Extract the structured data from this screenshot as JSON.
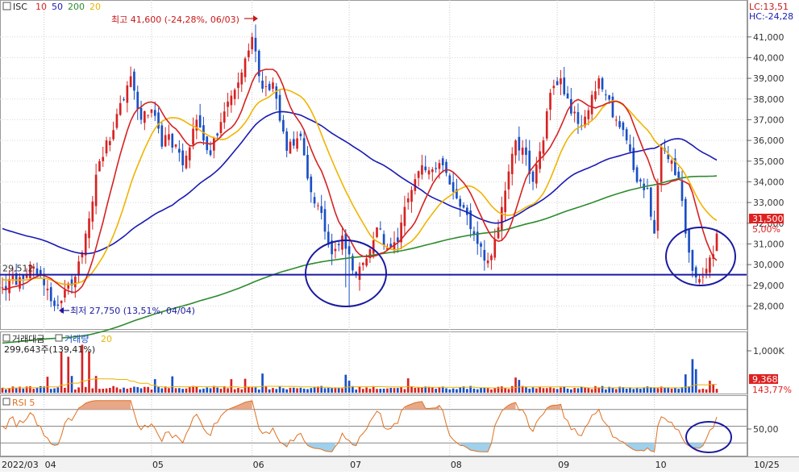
{
  "price_panel": {
    "ticker": "ISC",
    "ma_labels": [
      {
        "text": "10",
        "color": "#d62222"
      },
      {
        "text": "50",
        "color": "#1a1ab4"
      },
      {
        "text": "200",
        "color": "#2e8b2e"
      },
      {
        "text": "20",
        "color": "#e8b400"
      }
    ],
    "lc": "LC:13,51",
    "hc": "HC:-24,28",
    "high_note": "최고 41,600 (-24,28%, 06/03)",
    "low_note": "최저 27,750 (13,51%, 04/04)",
    "support_label": "29,512",
    "last_price": "31,500",
    "last_change": "5,00%"
  },
  "volume_panel": {
    "title_a": "거래대금",
    "title_b": "거래량",
    "title_num": "20",
    "summary": "299,643주(139,41%)",
    "axis_label": "1,000K",
    "last_volume": "9,368",
    "last_ratio": "143,77%"
  },
  "rsi_panel": {
    "title": "RSI 5",
    "axis_label": "50,00"
  },
  "colors": {
    "up": "#d62222",
    "down": "#1a4fc4",
    "ma10": "#d62222",
    "ma20": "#f0b400",
    "ma50": "#1a1ab4",
    "ma200": "#2e8b2e",
    "annotation": "#1a1aa0",
    "rsi_line": "#e07020",
    "rsi_over": "#e8a888",
    "rsi_under": "#9fd0ec"
  },
  "chart_data": {
    "type": "candlestick",
    "ylim": [
      27200,
      42200
    ],
    "y_ticks": [
      28000,
      29000,
      30000,
      31000,
      32000,
      33000,
      34000,
      35000,
      36000,
      37000,
      38000,
      39000,
      40000,
      41000
    ],
    "y_tick_labels": [
      "28,000",
      "29,000",
      "30,000",
      "31,000",
      "32,000",
      "33,000",
      "34,000",
      "35,000",
      "36,000",
      "37,000",
      "38,000",
      "39,000",
      "40,000",
      "41,000"
    ],
    "x_labels": [
      {
        "label": "2022/03",
        "idx": 0
      },
      {
        "label": "04",
        "idx": 12
      },
      {
        "label": "05",
        "idx": 43
      },
      {
        "label": "06",
        "idx": 72
      },
      {
        "label": "07",
        "idx": 100
      },
      {
        "label": "08",
        "idx": 129
      },
      {
        "label": "09",
        "idx": 160
      },
      {
        "label": "10",
        "idx": 188
      },
      {
        "label": "10/25",
        "idx": 218
      }
    ],
    "support_level": 29512,
    "anchors": [
      [
        0,
        28900
      ],
      [
        5,
        29400
      ],
      [
        8,
        30000
      ],
      [
        12,
        29000
      ],
      [
        15,
        28000
      ],
      [
        20,
        29000
      ],
      [
        24,
        31500
      ],
      [
        28,
        35000
      ],
      [
        32,
        36500
      ],
      [
        37,
        39100
      ],
      [
        40,
        37000
      ],
      [
        43,
        37500
      ],
      [
        46,
        35700
      ],
      [
        48,
        36300
      ],
      [
        52,
        34800
      ],
      [
        56,
        37000
      ],
      [
        60,
        35300
      ],
      [
        64,
        37400
      ],
      [
        68,
        38800
      ],
      [
        72,
        41000
      ],
      [
        75,
        38500
      ],
      [
        78,
        38800
      ],
      [
        82,
        35500
      ],
      [
        86,
        36200
      ],
      [
        89,
        33500
      ],
      [
        92,
        32500
      ],
      [
        95,
        30500
      ],
      [
        98,
        31400
      ],
      [
        102,
        29500
      ],
      [
        105,
        30300
      ],
      [
        108,
        31800
      ],
      [
        111,
        30800
      ],
      [
        114,
        31100
      ],
      [
        117,
        33200
      ],
      [
        121,
        34800
      ],
      [
        124,
        34600
      ],
      [
        127,
        34800
      ],
      [
        131,
        33200
      ],
      [
        134,
        32400
      ],
      [
        137,
        31000
      ],
      [
        140,
        30200
      ],
      [
        143,
        31800
      ],
      [
        146,
        34500
      ],
      [
        148,
        36000
      ],
      [
        151,
        35300
      ],
      [
        153,
        34000
      ],
      [
        156,
        36000
      ],
      [
        158,
        38300
      ],
      [
        161,
        39000
      ],
      [
        164,
        37300
      ],
      [
        167,
        36700
      ],
      [
        170,
        38200
      ],
      [
        172,
        39000
      ],
      [
        174,
        38200
      ],
      [
        177,
        37000
      ],
      [
        180,
        36000
      ],
      [
        183,
        34000
      ],
      [
        186,
        33700
      ],
      [
        188,
        31500
      ],
      [
        190,
        35700
      ],
      [
        192,
        35100
      ],
      [
        195,
        34200
      ],
      [
        197,
        31500
      ],
      [
        199,
        29700
      ],
      [
        201,
        29300
      ],
      [
        203,
        29800
      ],
      [
        205,
        30500
      ],
      [
        206,
        31500
      ]
    ],
    "high_point": {
      "idx": 73,
      "price": 41600
    },
    "low_point": {
      "idx": 15,
      "price": 27750
    },
    "volume_ylim": [
      0,
      1250000
    ],
    "volume_spikes": [
      [
        13,
        400000
      ],
      [
        17,
        1020000
      ],
      [
        19,
        900000
      ],
      [
        20,
        420000
      ],
      [
        23,
        1200000
      ],
      [
        25,
        1030000
      ],
      [
        27,
        420000
      ],
      [
        44,
        340000
      ],
      [
        49,
        410000
      ],
      [
        66,
        340000
      ],
      [
        70,
        350000
      ],
      [
        75,
        480000
      ],
      [
        99,
        450000
      ],
      [
        100,
        300000
      ],
      [
        117,
        360000
      ],
      [
        148,
        380000
      ],
      [
        149,
        320000
      ],
      [
        197,
        460000
      ],
      [
        199,
        840000
      ],
      [
        200,
        590000
      ],
      [
        204,
        300000
      ],
      [
        205,
        200000
      ]
    ],
    "rsi_ylim": [
      0,
      100
    ],
    "rsi_levels": [
      80,
      50,
      20
    ],
    "ma_periods": [
      10,
      20,
      50,
      200
    ]
  }
}
